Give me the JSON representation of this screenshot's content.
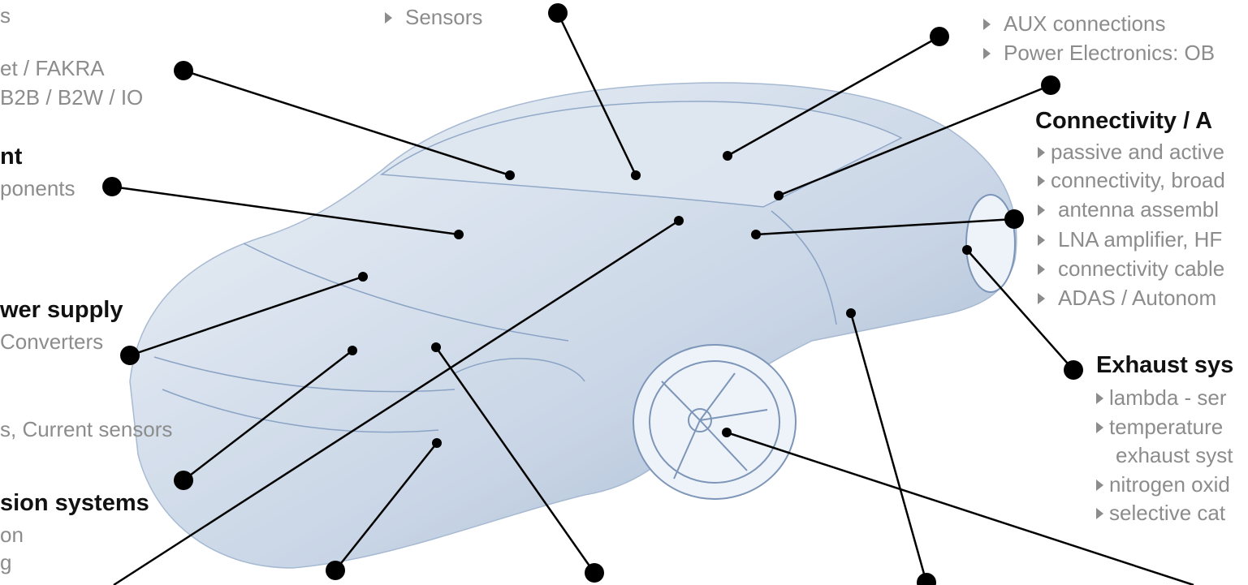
{
  "left": {
    "lines": [
      "s",
      "et / FAKRA",
      "B2B / B2W / IO",
      "ponents",
      "Converters",
      "s, Current sensors",
      "on",
      "g"
    ],
    "headings": [
      "nt",
      "wer supply",
      "sion systems"
    ]
  },
  "top": {
    "items": [
      "Sensors"
    ]
  },
  "top_right": {
    "items": [
      "AUX connections",
      "Power Electronics: OB"
    ]
  },
  "connectivity": {
    "heading": "Connectivity / A",
    "items": [
      "passive and active",
      "connectivity, broad",
      "antenna assembl",
      "LNA amplifier, HF",
      "connectivity cable",
      "ADAS / Autonom"
    ]
  },
  "exhaust": {
    "heading": "Exhaust sys",
    "items": [
      "lambda - ser",
      "temperature",
      "exhaust syst",
      "nitrogen oxid",
      "selective cat"
    ]
  }
}
